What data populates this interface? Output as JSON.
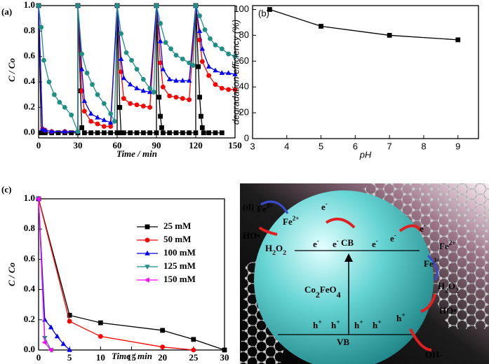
{
  "chart_data": [
    {
      "type": "line",
      "label": "(a)",
      "xlabel": "Time / min",
      "ylabel": "C / Co",
      "xlim": [
        0,
        150
      ],
      "xticks": [
        0,
        30,
        60,
        90,
        120,
        150
      ],
      "ylim": [
        -0.04,
        1.0
      ],
      "yticks": [
        {
          "value": 0,
          "label": "0.0"
        },
        0.2,
        0.4,
        0.6,
        0.8,
        {
          "value": 1,
          "label": "1.0"
        }
      ],
      "vlines": [
        30,
        60,
        90,
        120
      ],
      "series": [
        {
          "color": "#000000",
          "marker": "square",
          "x": [
            0,
            2,
            5,
            10,
            15,
            20,
            25,
            30,
            30,
            32,
            33,
            35,
            40,
            45,
            50,
            55,
            60,
            60,
            62,
            63,
            65,
            70,
            75,
            80,
            85,
            90,
            90,
            92,
            93,
            94,
            95,
            100,
            105,
            110,
            115,
            120,
            120,
            122,
            123,
            124,
            125,
            126,
            130,
            135,
            140
          ],
          "values": [
            1.0,
            0,
            0,
            0,
            0,
            0,
            0,
            0,
            1.0,
            0.33,
            0.04,
            0,
            0,
            0,
            0,
            0,
            0,
            1.0,
            0.2,
            0,
            0,
            0,
            0,
            0,
            0,
            0,
            1.0,
            0.28,
            0.13,
            0.04,
            0,
            0,
            0,
            0,
            0,
            0,
            1.0,
            0.52,
            0.28,
            0.13,
            0.04,
            0,
            0,
            0,
            0
          ]
        },
        {
          "color": "#ff0000",
          "marker": "circle",
          "x": [
            0,
            3,
            5,
            10,
            20,
            30,
            30,
            33,
            35,
            40,
            45,
            50,
            55,
            60,
            63,
            65,
            70,
            75,
            80,
            85,
            90,
            93,
            95,
            100,
            105,
            110,
            115,
            120,
            123,
            125,
            130,
            135,
            140,
            145,
            150
          ],
          "values": [
            1.0,
            0.03,
            0.02,
            0.01,
            0.01,
            0.01,
            1.0,
            0.33,
            0.17,
            0.09,
            0.07,
            0.05,
            0.05,
            1.0,
            0.48,
            0.27,
            0.23,
            0.22,
            0.21,
            0.2,
            1.0,
            0.55,
            0.36,
            0.29,
            0.28,
            0.27,
            0.26,
            1.0,
            0.73,
            0.56,
            0.45,
            0.38,
            0.35,
            0.34,
            0.34
          ]
        },
        {
          "color": "#0000ff",
          "marker": "triangle",
          "x": [
            0,
            3,
            5,
            10,
            20,
            30,
            30,
            33,
            35,
            40,
            45,
            50,
            55,
            60,
            63,
            65,
            70,
            75,
            80,
            85,
            90,
            93,
            95,
            100,
            105,
            110,
            115,
            120,
            123,
            125,
            130,
            135,
            140,
            145,
            150
          ],
          "values": [
            1.0,
            0.03,
            0.02,
            0.01,
            0.01,
            0.01,
            1.0,
            0.5,
            0.25,
            0.15,
            0.12,
            0.1,
            0.08,
            1.0,
            0.58,
            0.43,
            0.38,
            0.35,
            0.33,
            0.32,
            1.0,
            0.72,
            0.5,
            0.42,
            0.41,
            0.41,
            0.41,
            1.0,
            0.8,
            0.66,
            0.52,
            0.49,
            0.47,
            0.47,
            0.46
          ]
        },
        {
          "color": "#1f8f86",
          "marker": "circle",
          "x": [
            0,
            2,
            4,
            8,
            12,
            16,
            20,
            25,
            30,
            30,
            33,
            37,
            41,
            45,
            50,
            55,
            58,
            60,
            63,
            67,
            71,
            75,
            80,
            85,
            88,
            90,
            93,
            97,
            101,
            105,
            110,
            115,
            118,
            120,
            123,
            127,
            131,
            135,
            140,
            145,
            150
          ],
          "values": [
            1.0,
            0.83,
            0.57,
            0.4,
            0.3,
            0.24,
            0.2,
            0.14,
            0.01,
            1.0,
            0.62,
            0.47,
            0.38,
            0.3,
            0.23,
            0.15,
            0.09,
            1.0,
            0.78,
            0.63,
            0.57,
            0.5,
            0.42,
            0.35,
            0.32,
            1.0,
            0.86,
            0.71,
            0.66,
            0.61,
            0.58,
            0.55,
            0.53,
            1.0,
            0.92,
            0.81,
            0.74,
            0.69,
            0.66,
            0.62,
            0.6
          ]
        }
      ]
    },
    {
      "type": "line",
      "label": "(b)",
      "xlabel": "pH",
      "ylabel": "degradation efficiency (%)",
      "xlim": [
        3,
        9.6
      ],
      "xticks": [
        3,
        4,
        5,
        6,
        7,
        8,
        9
      ],
      "ylim": [
        0,
        103
      ],
      "yticks": [
        0,
        20,
        40,
        60,
        80,
        100
      ],
      "series": [
        {
          "color": "#000000",
          "marker": "square",
          "x": [
            3.5,
            5,
            7,
            9
          ],
          "values": [
            100,
            87,
            80,
            76.5
          ]
        }
      ]
    },
    {
      "type": "line",
      "label": "(c)",
      "xlabel": "Time / min",
      "ylabel": "C / Co",
      "xlim": [
        0,
        30
      ],
      "xticks": [
        0,
        5,
        10,
        15,
        20,
        25,
        30
      ],
      "ylim": [
        0,
        1.0
      ],
      "yticks": [
        {
          "value": 0,
          "label": "0.0"
        },
        0.2,
        0.4,
        0.6,
        0.8,
        {
          "value": 1,
          "label": "1.0"
        }
      ],
      "legend": "right",
      "series": [
        {
          "name": "25 mM",
          "color": "#000000",
          "marker": "square",
          "x": [
            0,
            5,
            10,
            20,
            25,
            30
          ],
          "values": [
            1.0,
            0.23,
            0.18,
            0.13,
            0.07,
            0
          ]
        },
        {
          "name": "50 mM",
          "color": "#ff0000",
          "marker": "circle",
          "x": [
            0,
            5,
            10,
            20,
            25
          ],
          "values": [
            1.0,
            0.19,
            0.09,
            0.02,
            0
          ]
        },
        {
          "name": "100 mM",
          "color": "#0000ff",
          "marker": "triangle",
          "x": [
            0,
            1,
            2,
            3,
            4,
            5
          ],
          "values": [
            1.0,
            0.2,
            0.15,
            0.09,
            0.04,
            0
          ]
        },
        {
          "name": "125 mM",
          "color": "#1f8f86",
          "marker": "triangle-down",
          "x": [
            0,
            1,
            2
          ],
          "values": [
            1.0,
            0.08,
            0
          ]
        },
        {
          "name": "150 mM",
          "color": "#ff00ff",
          "marker": "triangle-left",
          "x": [
            0,
            1,
            2
          ],
          "values": [
            1.0,
            0.05,
            0
          ]
        }
      ]
    }
  ],
  "diagram": {
    "labels": [
      [
        "(d)"
      ],
      [
        "Fe",
        {
          "sup": "3+"
        }
      ],
      [
        "Fe",
        {
          "sup": "2+"
        }
      ],
      [
        "HO•"
      ],
      [
        "H",
        {
          "sub": "2"
        },
        "O",
        {
          "sub": "2"
        }
      ],
      [
        "e",
        {
          "sup": "-"
        }
      ],
      [
        "e",
        {
          "sup": "-"
        }
      ],
      [
        "e",
        {
          "sup": "-"
        }
      ],
      [
        "CB"
      ],
      [
        "e",
        {
          "sup": "-"
        }
      ],
      [
        "e",
        {
          "sup": "-"
        }
      ],
      [
        "Co",
        {
          "sub": "2"
        },
        "FeO",
        {
          "sub": "4"
        }
      ],
      [
        "h",
        {
          "sup": "+"
        }
      ],
      [
        "h",
        {
          "sup": "+"
        }
      ],
      [
        "h",
        {
          "sup": "+"
        }
      ],
      [
        "h",
        {
          "sup": "+"
        }
      ],
      [
        "h",
        {
          "sup": "+"
        }
      ],
      [
        "VB"
      ],
      [
        "OH-"
      ],
      [
        "e",
        {
          "sup": "-"
        }
      ],
      [
        "Fe",
        {
          "sup": "2+"
        }
      ],
      [
        "Fe",
        {
          "sup": "3+"
        }
      ],
      [
        "H",
        {
          "sub": "2"
        },
        "O",
        {
          "sub": "2"
        }
      ],
      [
        "HO•"
      ]
    ]
  }
}
